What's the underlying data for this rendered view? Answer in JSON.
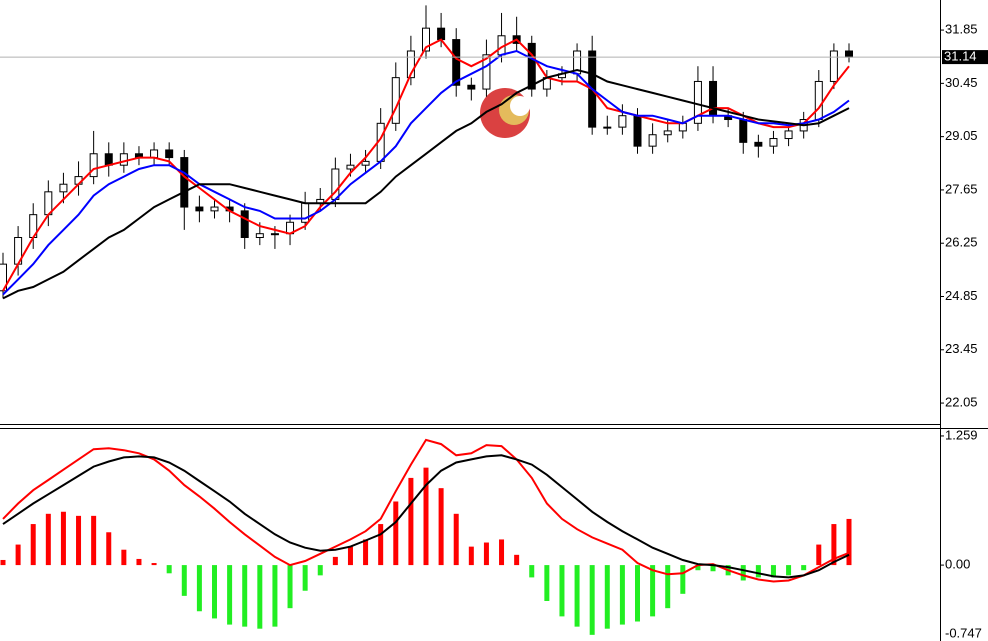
{
  "chart_data": [
    {
      "type": "candlestick",
      "open": [
        25.0,
        25.7,
        26.4,
        27.0,
        27.6,
        27.8,
        28.0,
        28.6,
        28.3,
        28.6,
        28.5,
        28.7,
        28.5,
        27.2,
        27.1,
        27.2,
        27.1,
        26.4,
        26.5,
        26.5,
        26.8,
        27.3,
        27.4,
        28.2,
        28.3,
        28.4,
        29.4,
        30.6,
        31.3,
        31.9,
        31.6,
        30.4,
        30.3,
        31.2,
        31.7,
        31.5,
        30.3,
        30.6,
        30.7,
        31.3,
        29.3,
        29.3,
        29.6,
        28.8,
        29.1,
        29.2,
        29.4,
        30.5,
        29.6,
        29.5,
        28.9,
        28.8,
        29.0,
        29.2,
        29.5,
        30.5,
        31.3
      ],
      "high": [
        26.0,
        26.7,
        27.3,
        27.9,
        28.1,
        28.4,
        29.2,
        28.9,
        28.9,
        28.8,
        28.9,
        28.9,
        28.7,
        27.5,
        27.4,
        27.4,
        27.3,
        26.8,
        26.7,
        27.0,
        27.6,
        27.7,
        28.5,
        28.6,
        28.7,
        29.8,
        31.0,
        31.7,
        32.5,
        32.3,
        31.9,
        30.6,
        31.6,
        32.3,
        32.2,
        31.7,
        30.8,
        30.9,
        31.5,
        31.7,
        29.6,
        29.9,
        29.8,
        29.4,
        29.5,
        29.6,
        30.9,
        30.9,
        29.8,
        29.7,
        29.1,
        29.2,
        29.4,
        29.7,
        30.8,
        31.5,
        31.5
      ],
      "low": [
        24.8,
        25.4,
        26.1,
        26.7,
        27.3,
        27.5,
        27.8,
        28.0,
        28.1,
        28.3,
        28.3,
        28.3,
        26.6,
        26.8,
        26.9,
        26.8,
        26.1,
        26.2,
        26.1,
        26.2,
        26.6,
        27.1,
        27.2,
        28.0,
        28.1,
        28.2,
        29.2,
        30.4,
        31.1,
        31.4,
        30.1,
        30.0,
        30.1,
        31.0,
        31.3,
        30.1,
        30.1,
        30.4,
        30.5,
        29.1,
        29.1,
        29.1,
        28.6,
        28.6,
        28.9,
        29.0,
        29.2,
        29.4,
        29.3,
        28.6,
        28.5,
        28.6,
        28.8,
        29.0,
        29.3,
        30.3,
        31.0
      ],
      "close": [
        25.7,
        26.4,
        27.0,
        27.6,
        27.8,
        28.0,
        28.6,
        28.3,
        28.6,
        28.5,
        28.7,
        28.5,
        27.2,
        27.1,
        27.2,
        27.1,
        26.4,
        26.5,
        26.5,
        26.8,
        27.3,
        27.4,
        28.2,
        28.3,
        28.4,
        29.4,
        30.6,
        31.3,
        31.9,
        31.6,
        30.4,
        30.3,
        31.2,
        31.7,
        31.5,
        30.3,
        30.6,
        30.7,
        31.3,
        29.3,
        29.3,
        29.6,
        28.8,
        29.1,
        29.2,
        29.4,
        30.5,
        29.6,
        29.5,
        28.9,
        28.8,
        29.0,
        29.2,
        29.5,
        30.5,
        31.3,
        31.14
      ],
      "up_color": "#ffffff",
      "down_color": "#000000",
      "series": [
        {
          "color": "#ff0000",
          "values": [
            25.0,
            25.7,
            26.4,
            27.0,
            27.4,
            27.8,
            28.2,
            28.3,
            28.4,
            28.5,
            28.5,
            28.4,
            28.0,
            27.7,
            27.4,
            27.1,
            26.9,
            26.7,
            26.6,
            26.5,
            26.7,
            27.2,
            27.6,
            28.1,
            28.5,
            29.0,
            29.8,
            30.7,
            31.4,
            31.6,
            31.1,
            30.9,
            31.1,
            31.4,
            31.6,
            31.2,
            30.6,
            30.5,
            30.5,
            30.3,
            29.8,
            29.7,
            29.6,
            29.5,
            29.4,
            29.4,
            29.6,
            29.8,
            29.8,
            29.6,
            29.4,
            29.3,
            29.3,
            29.4,
            29.8,
            30.4,
            30.9
          ]
        },
        {
          "color": "#0000ff",
          "values": [
            24.9,
            25.3,
            25.7,
            26.2,
            26.6,
            27.0,
            27.5,
            27.8,
            28.0,
            28.2,
            28.3,
            28.3,
            28.1,
            27.8,
            27.6,
            27.4,
            27.2,
            27.1,
            26.9,
            26.9,
            26.9,
            27.1,
            27.4,
            27.8,
            28.1,
            28.4,
            28.8,
            29.4,
            29.8,
            30.2,
            30.5,
            30.7,
            30.9,
            31.2,
            31.3,
            31.1,
            30.9,
            30.8,
            30.7,
            30.3,
            30.0,
            29.7,
            29.6,
            29.6,
            29.5,
            29.4,
            29.6,
            29.6,
            29.6,
            29.5,
            29.4,
            29.4,
            29.35,
            29.4,
            29.5,
            29.7,
            30.0
          ]
        },
        {
          "color": "#000000",
          "values": [
            24.8,
            25.0,
            25.1,
            25.3,
            25.5,
            25.8,
            26.1,
            26.4,
            26.6,
            26.9,
            27.2,
            27.4,
            27.6,
            27.8,
            27.8,
            27.8,
            27.7,
            27.6,
            27.5,
            27.4,
            27.3,
            27.3,
            27.3,
            27.3,
            27.3,
            27.6,
            28.0,
            28.3,
            28.6,
            28.9,
            29.2,
            29.4,
            29.7,
            29.9,
            30.2,
            30.4,
            30.6,
            30.7,
            30.8,
            30.7,
            30.5,
            30.4,
            30.3,
            30.2,
            30.1,
            30.0,
            29.9,
            29.8,
            29.7,
            29.6,
            29.5,
            29.45,
            29.4,
            29.35,
            29.4,
            29.6,
            29.8
          ]
        }
      ],
      "last_price": 31.14,
      "ylim": [
        21.5,
        32.64
      ],
      "yticks": [
        31.85,
        30.45,
        29.05,
        27.65,
        26.25,
        24.85,
        23.45,
        22.05
      ]
    },
    {
      "type": "macd",
      "histogram": [
        0.05,
        0.2,
        0.4,
        0.5,
        0.52,
        0.48,
        0.48,
        0.32,
        0.15,
        0.06,
        0.02,
        -0.08,
        -0.3,
        -0.45,
        -0.52,
        -0.58,
        -0.6,
        -0.62,
        -0.6,
        -0.42,
        -0.25,
        -0.1,
        0.08,
        0.18,
        0.25,
        0.4,
        0.62,
        0.85,
        0.95,
        0.75,
        0.5,
        0.18,
        0.22,
        0.25,
        0.1,
        -0.12,
        -0.35,
        -0.5,
        -0.6,
        -0.68,
        -0.62,
        -0.58,
        -0.55,
        -0.5,
        -0.42,
        -0.28,
        -0.05,
        -0.06,
        -0.1,
        -0.15,
        -0.12,
        -0.12,
        -0.1,
        -0.05,
        0.2,
        0.4,
        0.45
      ],
      "pos_color": "#ff0000",
      "neg_color": "#22ee22",
      "series": [
        {
          "color": "#ff0000",
          "values": [
            0.45,
            0.6,
            0.73,
            0.83,
            0.93,
            1.03,
            1.13,
            1.14,
            1.12,
            1.09,
            1.03,
            0.92,
            0.78,
            0.67,
            0.55,
            0.42,
            0.3,
            0.19,
            0.08,
            0.0,
            0.04,
            0.11,
            0.18,
            0.25,
            0.33,
            0.45,
            0.72,
            0.98,
            1.22,
            1.18,
            1.07,
            1.09,
            1.17,
            1.16,
            1.03,
            0.85,
            0.6,
            0.45,
            0.35,
            0.27,
            0.21,
            0.15,
            0.02,
            -0.05,
            -0.09,
            -0.08,
            0.0,
            0.01,
            -0.05,
            -0.1,
            -0.14,
            -0.16,
            -0.15,
            -0.1,
            -0.02,
            0.06,
            0.12
          ]
        },
        {
          "color": "#000000",
          "values": [
            0.4,
            0.5,
            0.6,
            0.69,
            0.78,
            0.87,
            0.96,
            1.01,
            1.05,
            1.06,
            1.05,
            1.0,
            0.92,
            0.82,
            0.72,
            0.62,
            0.5,
            0.4,
            0.3,
            0.22,
            0.17,
            0.14,
            0.15,
            0.18,
            0.24,
            0.3,
            0.42,
            0.6,
            0.78,
            0.92,
            1.0,
            1.03,
            1.06,
            1.07,
            1.03,
            0.98,
            0.88,
            0.76,
            0.64,
            0.52,
            0.42,
            0.33,
            0.25,
            0.17,
            0.11,
            0.05,
            0.01,
            0.0,
            -0.02,
            -0.05,
            -0.08,
            -0.11,
            -0.12,
            -0.1,
            -0.05,
            0.03,
            0.1
          ]
        }
      ],
      "ylim": [
        -0.74,
        1.317
      ],
      "yticks": [
        1.259,
        {
          "value": 0,
          "label": "0.00"
        },
        -0.747
      ]
    }
  ]
}
